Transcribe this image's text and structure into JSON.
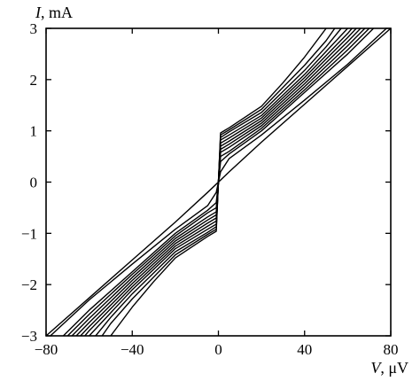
{
  "chart_data": {
    "type": "line",
    "title": "",
    "xlabel": {
      "var": "V",
      "unit": ", μV"
    },
    "ylabel": {
      "var": "I",
      "unit": ", mA"
    },
    "xlim": [
      -80,
      80
    ],
    "ylim": [
      -3,
      3
    ],
    "x_ticks": [
      {
        "value": -80,
        "label": "−80"
      },
      {
        "value": -40,
        "label": "−40"
      },
      {
        "value": 0,
        "label": "0"
      },
      {
        "value": 40,
        "label": "40"
      },
      {
        "value": 80,
        "label": "80"
      }
    ],
    "y_ticks": [
      {
        "value": -3,
        "label": "−3"
      },
      {
        "value": -2,
        "label": "−2"
      },
      {
        "value": -1,
        "label": "−1"
      },
      {
        "value": 0,
        "label": "0"
      },
      {
        "value": 1,
        "label": "1"
      },
      {
        "value": 2,
        "label": "2"
      },
      {
        "value": 3,
        "label": "3"
      }
    ],
    "grid": false,
    "line_color": "#000000",
    "series": [
      {
        "x": [
          -80,
          -60,
          -40,
          -20,
          -5,
          -1,
          0,
          1,
          5,
          20,
          40,
          60,
          80
        ],
        "y": [
          -3,
          -2.26,
          -1.52,
          -0.78,
          -0.2,
          -0.04,
          0,
          0.04,
          0.2,
          0.78,
          1.52,
          2.26,
          3
        ]
      },
      {
        "x": [
          -78,
          -60,
          -40,
          -20,
          -5,
          -1,
          0,
          1,
          5,
          20,
          40,
          60,
          78
        ],
        "y": [
          -3,
          -2.3,
          -1.6,
          -0.92,
          -0.46,
          -0.2,
          0,
          0.2,
          0.46,
          0.92,
          1.6,
          2.3,
          3
        ]
      },
      {
        "x": [
          -72,
          -60,
          -40,
          -20,
          -5,
          -1,
          0,
          1,
          5,
          20,
          40,
          60,
          72
        ],
        "y": [
          -3,
          -2.5,
          -1.75,
          -1.0,
          -0.55,
          -0.4,
          0,
          0.4,
          0.55,
          1.0,
          1.75,
          2.5,
          3
        ]
      },
      {
        "x": [
          -70,
          -60,
          -40,
          -20,
          -5,
          -1,
          0,
          1,
          5,
          20,
          40,
          60,
          70
        ],
        "y": [
          -3,
          -2.58,
          -1.8,
          -1.05,
          -0.6,
          -0.5,
          0,
          0.5,
          0.6,
          1.05,
          1.8,
          2.58,
          3
        ]
      },
      {
        "x": [
          -68,
          -60,
          -40,
          -20,
          -5,
          -1,
          0,
          1,
          5,
          20,
          40,
          60,
          68
        ],
        "y": [
          -3,
          -2.66,
          -1.86,
          -1.1,
          -0.68,
          -0.58,
          0,
          0.58,
          0.68,
          1.1,
          1.86,
          2.66,
          3
        ]
      },
      {
        "x": [
          -66,
          -60,
          -40,
          -20,
          -5,
          -1,
          0,
          1,
          5,
          20,
          40,
          60,
          66
        ],
        "y": [
          -3,
          -2.74,
          -1.92,
          -1.15,
          -0.74,
          -0.64,
          0,
          0.64,
          0.74,
          1.15,
          1.92,
          2.74,
          3
        ]
      },
      {
        "x": [
          -64,
          -60,
          -40,
          -20,
          -5,
          -1,
          0,
          1,
          5,
          20,
          40,
          60,
          64
        ],
        "y": [
          -3,
          -2.82,
          -1.98,
          -1.2,
          -0.8,
          -0.7,
          0,
          0.7,
          0.8,
          1.2,
          1.98,
          2.82,
          3
        ]
      },
      {
        "x": [
          -62,
          -60,
          -40,
          -20,
          -5,
          -1,
          0,
          1,
          5,
          20,
          40,
          60,
          62
        ],
        "y": [
          -3,
          -2.9,
          -2.04,
          -1.25,
          -0.86,
          -0.76,
          0,
          0.76,
          0.86,
          1.25,
          2.04,
          2.9,
          3
        ]
      },
      {
        "x": [
          -60,
          -50,
          -40,
          -20,
          -5,
          -1,
          0,
          1,
          5,
          20,
          40,
          50,
          60
        ],
        "y": [
          -3,
          -2.55,
          -2.1,
          -1.3,
          -0.92,
          -0.82,
          0,
          0.82,
          0.92,
          1.3,
          2.1,
          2.55,
          3
        ]
      },
      {
        "x": [
          -57,
          -50,
          -40,
          -20,
          -5,
          -1,
          0,
          1,
          5,
          20,
          40,
          50,
          57
        ],
        "y": [
          -3,
          -2.64,
          -2.18,
          -1.36,
          -0.98,
          -0.87,
          0,
          0.87,
          0.98,
          1.36,
          2.18,
          2.64,
          3
        ]
      },
      {
        "x": [
          -54,
          -50,
          -40,
          -20,
          -5,
          -1,
          0,
          1,
          5,
          20,
          40,
          50,
          54
        ],
        "y": [
          -3,
          -2.76,
          -2.28,
          -1.42,
          -1.02,
          -0.92,
          0,
          0.92,
          1.02,
          1.42,
          2.28,
          2.76,
          3
        ]
      },
      {
        "x": [
          -50,
          -40,
          -30,
          -20,
          -5,
          -1,
          0,
          1,
          5,
          20,
          30,
          40,
          50
        ],
        "y": [
          -3,
          -2.44,
          -1.94,
          -1.48,
          -1.06,
          -0.96,
          0,
          0.96,
          1.06,
          1.48,
          1.94,
          2.44,
          3
        ]
      }
    ]
  }
}
